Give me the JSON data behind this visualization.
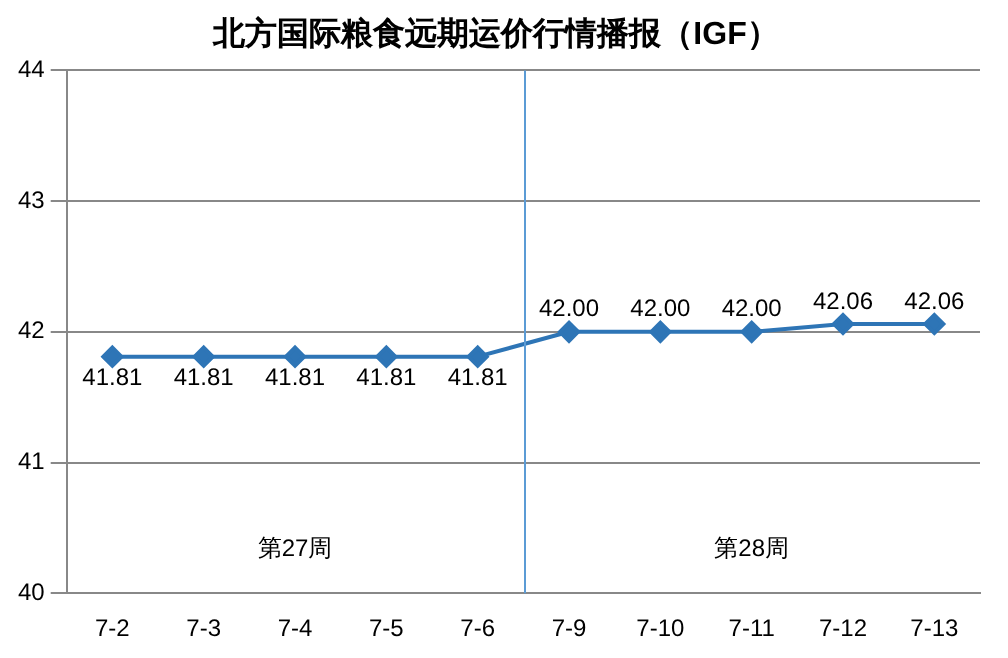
{
  "chart_data": {
    "type": "line",
    "title": "北方国际粮食远期运价行情播报（IGF）",
    "categories": [
      "7-2",
      "7-3",
      "7-4",
      "7-5",
      "7-6",
      "7-9",
      "7-10",
      "7-11",
      "7-12",
      "7-13"
    ],
    "series": [
      {
        "color": "#2e75b6",
        "values": [
          41.81,
          41.81,
          41.81,
          41.81,
          41.81,
          42.0,
          42.0,
          42.0,
          42.06,
          42.06
        ],
        "value_labels": [
          "41.81",
          "41.81",
          "41.81",
          "41.81",
          "41.81",
          "42.00",
          "42.00",
          "42.00",
          "42.06",
          "42.06"
        ]
      }
    ],
    "ylim": [
      40,
      44
    ],
    "yticks": [
      40,
      41,
      42,
      43,
      44
    ],
    "grid": "y",
    "marker": "diamond",
    "line_style": "solid",
    "legend": false,
    "ref_lines": [
      {
        "axis": "x",
        "value": "7-9",
        "color": "#5b9bd5"
      }
    ],
    "annotations": [
      "第27周",
      "第28周"
    ]
  }
}
